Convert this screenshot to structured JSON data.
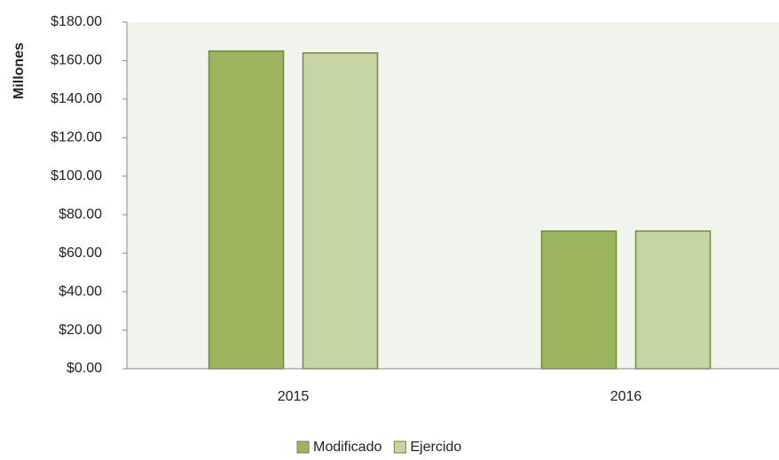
{
  "chart_data": {
    "type": "bar",
    "y_label": "Millones",
    "categories": [
      "2015",
      "2016"
    ],
    "series": [
      {
        "name": "Modificado",
        "color": "#9bb45e",
        "values": [
          165,
          71.5
        ]
      },
      {
        "name": "Ejercido",
        "color": "#c5d6a4",
        "values": [
          164,
          71.5
        ]
      }
    ],
    "ylim": [
      0,
      180
    ],
    "yticks": [
      {
        "value": 0,
        "label": "$0.00"
      },
      {
        "value": 20,
        "label": "$20.00"
      },
      {
        "value": 40,
        "label": "$40.00"
      },
      {
        "value": 60,
        "label": "$60.00"
      },
      {
        "value": 80,
        "label": "$80.00"
      },
      {
        "value": 100,
        "label": "$100.00"
      },
      {
        "value": 120,
        "label": "$120.00"
      },
      {
        "value": 140,
        "label": "$140.00"
      },
      {
        "value": 160,
        "label": "$160.00"
      },
      {
        "value": 180,
        "label": "$180.00"
      }
    ],
    "legend": "bottom"
  }
}
